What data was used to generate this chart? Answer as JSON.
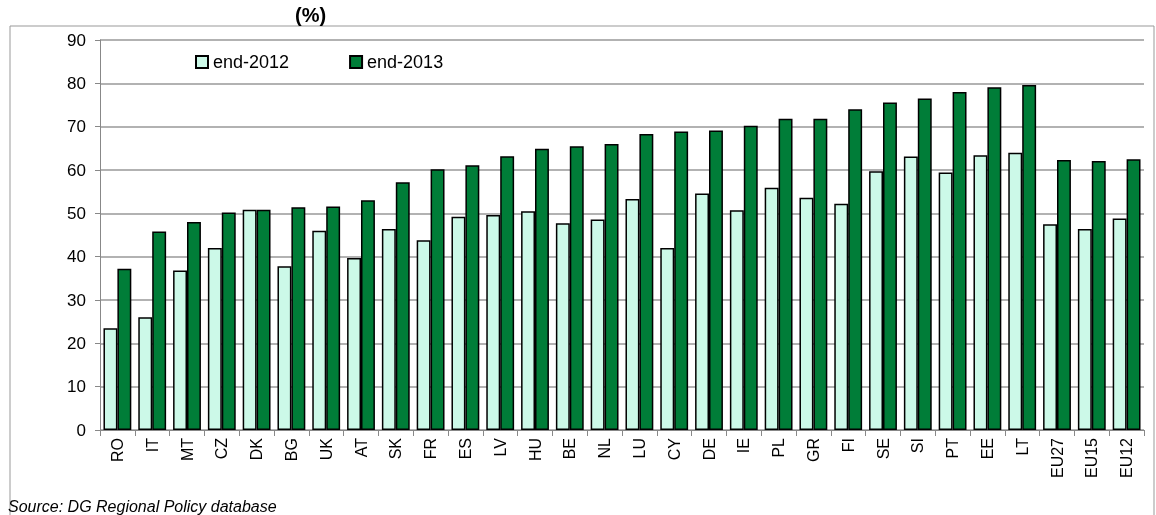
{
  "chart_data": {
    "type": "bar",
    "title": "(%)",
    "categories": [
      "RO",
      "IT",
      "MT",
      "CZ",
      "DK",
      "BG",
      "UK",
      "AT",
      "SK",
      "FR",
      "ES",
      "LV",
      "HU",
      "BE",
      "NL",
      "LU",
      "CY",
      "DE",
      "IE",
      "PL",
      "GR",
      "FI",
      "SE",
      "SI",
      "PT",
      "EE",
      "LT",
      "EU27",
      "EU15",
      "EU12"
    ],
    "series": [
      {
        "name": "end-2012",
        "color": "#ccf9e8",
        "values": [
          23.5,
          26,
          36.8,
          42,
          50.8,
          37.8,
          46,
          39.7,
          46.4,
          43.8,
          49.2,
          49.6,
          50.5,
          47.7,
          48.6,
          53.3,
          42,
          54.6,
          50.7,
          55.9,
          53.6,
          52.2,
          59.7,
          63.1,
          59.4,
          63.4,
          64,
          47.5,
          46.4,
          48.8
        ]
      },
      {
        "name": "end-2013",
        "color": "#007d38",
        "values": [
          37.2,
          45.8,
          48,
          50.2,
          50.8,
          51.4,
          51.6,
          53,
          57.2,
          60.2,
          61.1,
          63.2,
          64.9,
          65.5,
          66,
          68.3,
          68.9,
          69.1,
          70.2,
          71.8,
          71.8,
          74,
          75.6,
          76.5,
          78,
          79.1,
          79.6,
          62.3,
          62.1,
          62.5
        ]
      }
    ],
    "ylim": [
      0,
      90
    ],
    "yticks": [
      0,
      10,
      20,
      30,
      40,
      50,
      60,
      70,
      80,
      90
    ],
    "grid": "y",
    "legend": "top left",
    "annotations": [
      "Source: DG Regional Policy database"
    ]
  }
}
